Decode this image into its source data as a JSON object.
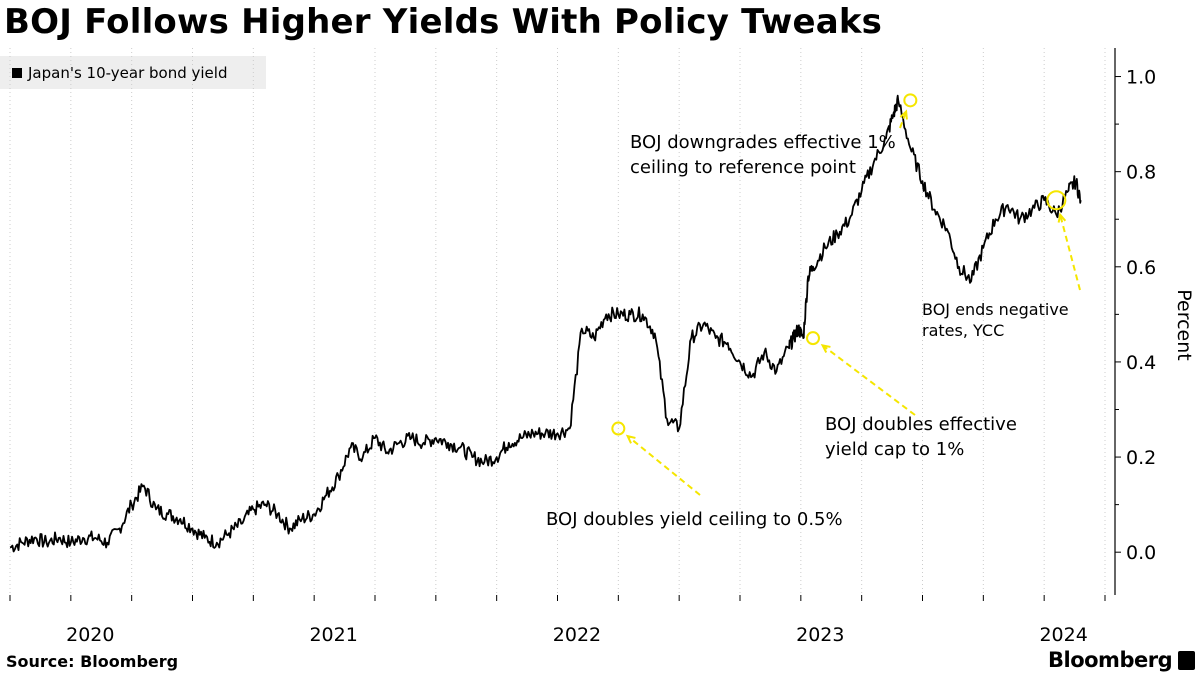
{
  "title": "BOJ Follows Higher Yields With Policy Tweaks",
  "legend": {
    "label": "Japan's 10-year bond yield"
  },
  "source": "Source: Bloomberg",
  "brand": "Bloomberg",
  "colors": {
    "line": "#000000",
    "highlight": "#f5e600",
    "legend_bg": "#eeeeee",
    "grid": "#cccccc"
  },
  "chart_data": {
    "type": "line",
    "title": "BOJ Follows Higher Yields With Policy Tweaks",
    "xlabel": "",
    "ylabel": "Percent",
    "xlim": [
      2019.75,
      2024.25
    ],
    "ylim": [
      -0.09,
      1.06
    ],
    "yticks": [
      0.0,
      0.2,
      0.4,
      0.6,
      0.8,
      1.0
    ],
    "ytick_labels": [
      "0.0",
      "0.2",
      "0.4",
      "0.6",
      "0.8",
      "1.0"
    ],
    "xticks": [
      2020,
      2021,
      2022,
      2023,
      2024
    ],
    "xtick_labels": [
      "2020",
      "2021",
      "2022",
      "2023",
      "2024"
    ],
    "series": [
      {
        "name": "Japan's 10-year bond yield",
        "x": [
          2019.75,
          2019.8,
          2019.85,
          2019.9,
          2019.95,
          2020.0,
          2020.05,
          2020.1,
          2020.15,
          2020.2,
          2020.25,
          2020.3,
          2020.35,
          2020.4,
          2020.45,
          2020.5,
          2020.55,
          2020.6,
          2020.65,
          2020.7,
          2020.75,
          2020.8,
          2020.85,
          2020.9,
          2020.95,
          2021.0,
          2021.05,
          2021.1,
          2021.15,
          2021.2,
          2021.25,
          2021.3,
          2021.35,
          2021.4,
          2021.45,
          2021.5,
          2021.55,
          2021.6,
          2021.65,
          2021.7,
          2021.75,
          2021.8,
          2021.85,
          2021.9,
          2021.95,
          2022.0,
          2022.05,
          2022.1,
          2022.15,
          2022.2,
          2022.25,
          2022.3,
          2022.35,
          2022.4,
          2022.45,
          2022.5,
          2022.55,
          2022.6,
          2022.65,
          2022.7,
          2022.75,
          2022.8,
          2022.85,
          2022.9,
          2022.95,
          2022.97,
          2022.99,
          2023.01,
          2023.03,
          2023.05,
          2023.1,
          2023.15,
          2023.2,
          2023.25,
          2023.3,
          2023.35,
          2023.38,
          2023.4,
          2023.45,
          2023.5,
          2023.55,
          2023.6,
          2023.65,
          2023.7,
          2023.75,
          2023.8,
          2023.85,
          2023.9,
          2023.95,
          2024.0,
          2024.05,
          2024.1,
          2024.13,
          2024.15
        ],
        "y": [
          0.01,
          0.02,
          0.03,
          0.02,
          0.03,
          0.02,
          0.03,
          0.03,
          0.02,
          0.05,
          0.1,
          0.14,
          0.09,
          0.08,
          0.07,
          0.05,
          0.03,
          0.02,
          0.04,
          0.06,
          0.09,
          0.1,
          0.08,
          0.05,
          0.07,
          0.08,
          0.12,
          0.16,
          0.22,
          0.2,
          0.24,
          0.21,
          0.23,
          0.24,
          0.23,
          0.24,
          0.23,
          0.22,
          0.2,
          0.19,
          0.2,
          0.23,
          0.24,
          0.25,
          0.25,
          0.25,
          0.26,
          0.47,
          0.45,
          0.5,
          0.5,
          0.5,
          0.5,
          0.46,
          0.28,
          0.26,
          0.45,
          0.48,
          0.45,
          0.44,
          0.4,
          0.37,
          0.42,
          0.38,
          0.43,
          0.45,
          0.47,
          0.45,
          0.58,
          0.6,
          0.64,
          0.67,
          0.7,
          0.76,
          0.82,
          0.87,
          0.92,
          0.95,
          0.85,
          0.78,
          0.72,
          0.68,
          0.6,
          0.57,
          0.64,
          0.7,
          0.73,
          0.7,
          0.72,
          0.74,
          0.71,
          0.76,
          0.78,
          0.74
        ]
      }
    ],
    "annotations": [
      {
        "lines": [
          "BOJ doubles yield ceiling to 0.5%"
        ],
        "x": 2022.25,
        "y": 0.26
      },
      {
        "lines": [
          "BOJ doubles effective",
          "yield cap to 1%"
        ],
        "x": 2023.05,
        "y": 0.45
      },
      {
        "lines": [
          "BOJ downgrades effective 1%",
          "ceiling to reference point"
        ],
        "x": 2023.45,
        "y": 0.95
      },
      {
        "lines": [
          "BOJ ends negative",
          "rates, YCC"
        ],
        "x": 2024.05,
        "y": 0.74
      }
    ]
  }
}
